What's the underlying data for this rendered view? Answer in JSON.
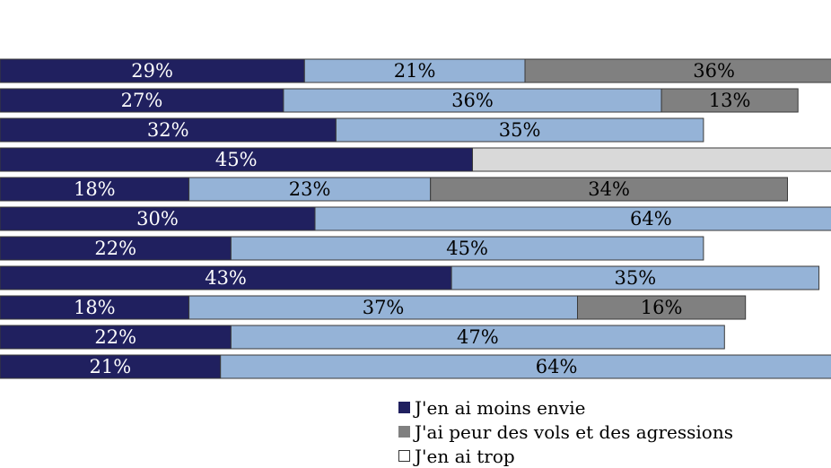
{
  "chart_data": {
    "type": "bar",
    "orientation": "horizontal",
    "stacked": true,
    "colors": {
      "moins_envie": "#20205f",
      "light_blue": "#95b3d7",
      "vols_agressions": "#808080",
      "trop": "#d9d9d9",
      "label_on_dark": "#ffffff",
      "label_on_light": "#000000"
    },
    "categories": [
      "",
      "",
      "",
      "",
      "",
      "",
      "",
      "",
      "",
      "",
      ""
    ],
    "series": [
      {
        "name": "J'en ai moins envie",
        "color": "#20205f",
        "values": [
          29,
          27,
          32,
          45,
          18,
          30,
          22,
          43,
          18,
          22,
          21
        ],
        "labels": [
          "29%",
          "27%",
          "32%",
          "45%",
          "18%",
          "30%",
          "22%",
          "43%",
          "18%",
          "22%",
          "21%"
        ]
      },
      {
        "name": "",
        "color": "#95b3d7",
        "values": [
          21,
          36,
          35,
          null,
          23,
          64,
          45,
          35,
          37,
          47,
          64
        ],
        "labels": [
          "21%",
          "36%",
          "35%",
          "",
          "23%",
          "64%",
          "45%",
          "35%",
          "37%",
          "47%",
          "64%"
        ]
      },
      {
        "name": "J'ai peur des vols et des agressions",
        "color": "#808080",
        "values": [
          36,
          13,
          null,
          null,
          34,
          null,
          null,
          null,
          16,
          null,
          null
        ],
        "labels": [
          "36%",
          "13%",
          "",
          "",
          "34%",
          "",
          "",
          "",
          "16%",
          "",
          ""
        ]
      },
      {
        "name": "J'en ai trop",
        "color": "#d9d9d9",
        "values": [
          null,
          null,
          null,
          55,
          null,
          null,
          null,
          null,
          null,
          null,
          null
        ],
        "labels": [
          "",
          "",
          "",
          "",
          "",
          "",
          "",
          "",
          "",
          "",
          ""
        ]
      }
    ],
    "legend": {
      "placement": "bottom-right",
      "entries": [
        {
          "label": "J'en ai moins envie",
          "color": "#20205f"
        },
        {
          "label": "J'ai peur des vols et des agressions",
          "color": "#808080"
        },
        {
          "label": "J'en ai trop",
          "color": "#ffffff"
        }
      ]
    },
    "xlim": [
      0,
      100
    ],
    "grid": false
  }
}
